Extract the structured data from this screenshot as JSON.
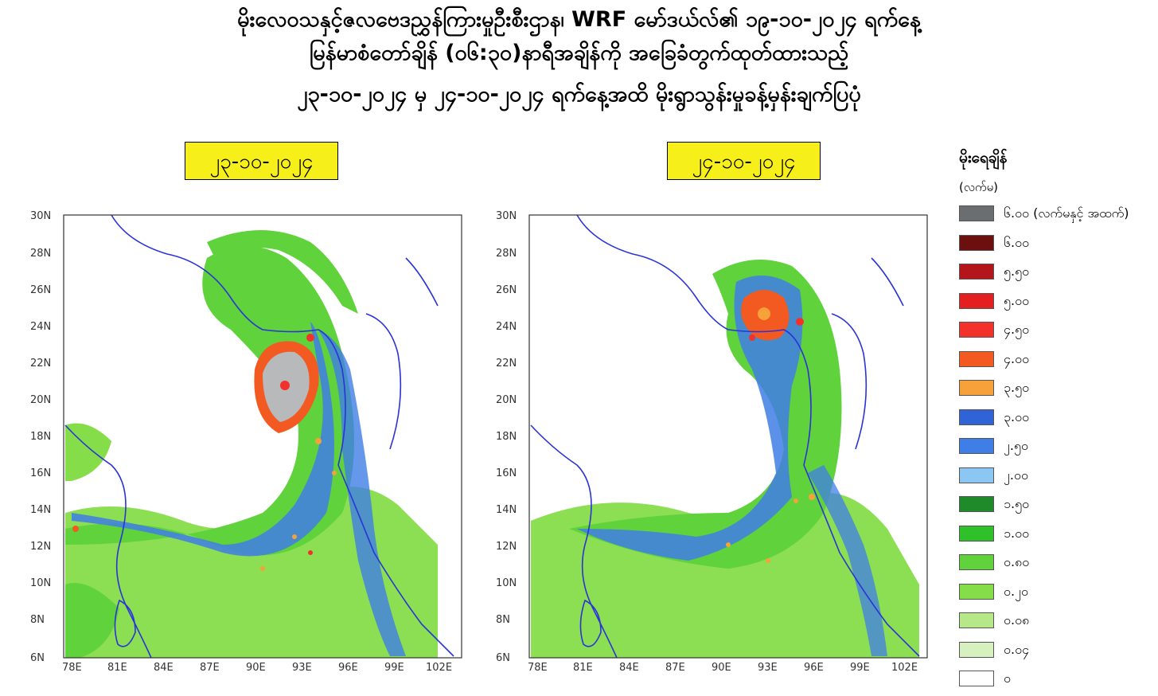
{
  "title": {
    "line1": "မိုးလေဝသနှင့်ဇလဗေဒညွှန်ကြားမှုဦးစီးဌာန၊ WRF မော်ဒယ်လ်၏ ၁၉-၁၀-၂၀၂၄ ရက်နေ့",
    "line2": "မြန်မာစံတော်ချိန် (၀၆:၃၀)နာရီအချိန်ကို အခြေခံတွက်ထုတ်ထားသည့်",
    "line3": "၂၃-၁၀-၂၀၂၄ မှ ၂၄-၁၀-၂၀၂၄ ရက်နေ့အထိ မိုးရွာသွန်းမှုခန့်မှန်းချက်ပြပုံ"
  },
  "maps": [
    {
      "date": "၂၃-၁၀-၂၀၂၄"
    },
    {
      "date": "၂၄-၁၀-၂၀၂၄"
    }
  ],
  "axes": {
    "lat_labels": [
      "30N",
      "28N",
      "26N",
      "24N",
      "22N",
      "20N",
      "18N",
      "16N",
      "14N",
      "12N",
      "10N",
      "8N",
      "6N"
    ],
    "lon_labels": [
      "78E",
      "81E",
      "84E",
      "87E",
      "90E",
      "93E",
      "96E",
      "99E",
      "102E"
    ]
  },
  "legend": {
    "title": "မိုးရေချိန်",
    "unit": "(လက်မ)",
    "items": [
      {
        "label": "၆.၀၀ (လက်မနှင့် အထက်)",
        "color": "#6b6e70"
      },
      {
        "label": "၆.၀၀",
        "color": "#6b0f0f"
      },
      {
        "label": "၅.၅၀",
        "color": "#b3151a"
      },
      {
        "label": "၅.၀၀",
        "color": "#e41f1f"
      },
      {
        "label": "၄.၅၀",
        "color": "#f3312b"
      },
      {
        "label": "၄.၀၀",
        "color": "#f25a22"
      },
      {
        "label": "၃.၅၀",
        "color": "#f7a13a"
      },
      {
        "label": "၃.၀၀",
        "color": "#2f63d6"
      },
      {
        "label": "၂.၅၀",
        "color": "#3f7ee6"
      },
      {
        "label": "၂.၀၀",
        "color": "#8cc7f3"
      },
      {
        "label": "၁.၅၀",
        "color": "#1f8a2a"
      },
      {
        "label": "၁.၀၀",
        "color": "#2fc12a"
      },
      {
        "label": "၀.၈၀",
        "color": "#5fd23c"
      },
      {
        "label": "၀.၂၀",
        "color": "#86dd4a"
      },
      {
        "label": "၀.၀၈",
        "color": "#b6e88a"
      },
      {
        "label": "၀.၀၄",
        "color": "#d6f0bf"
      },
      {
        "label": "၀",
        "color": "#ffffff"
      }
    ]
  }
}
